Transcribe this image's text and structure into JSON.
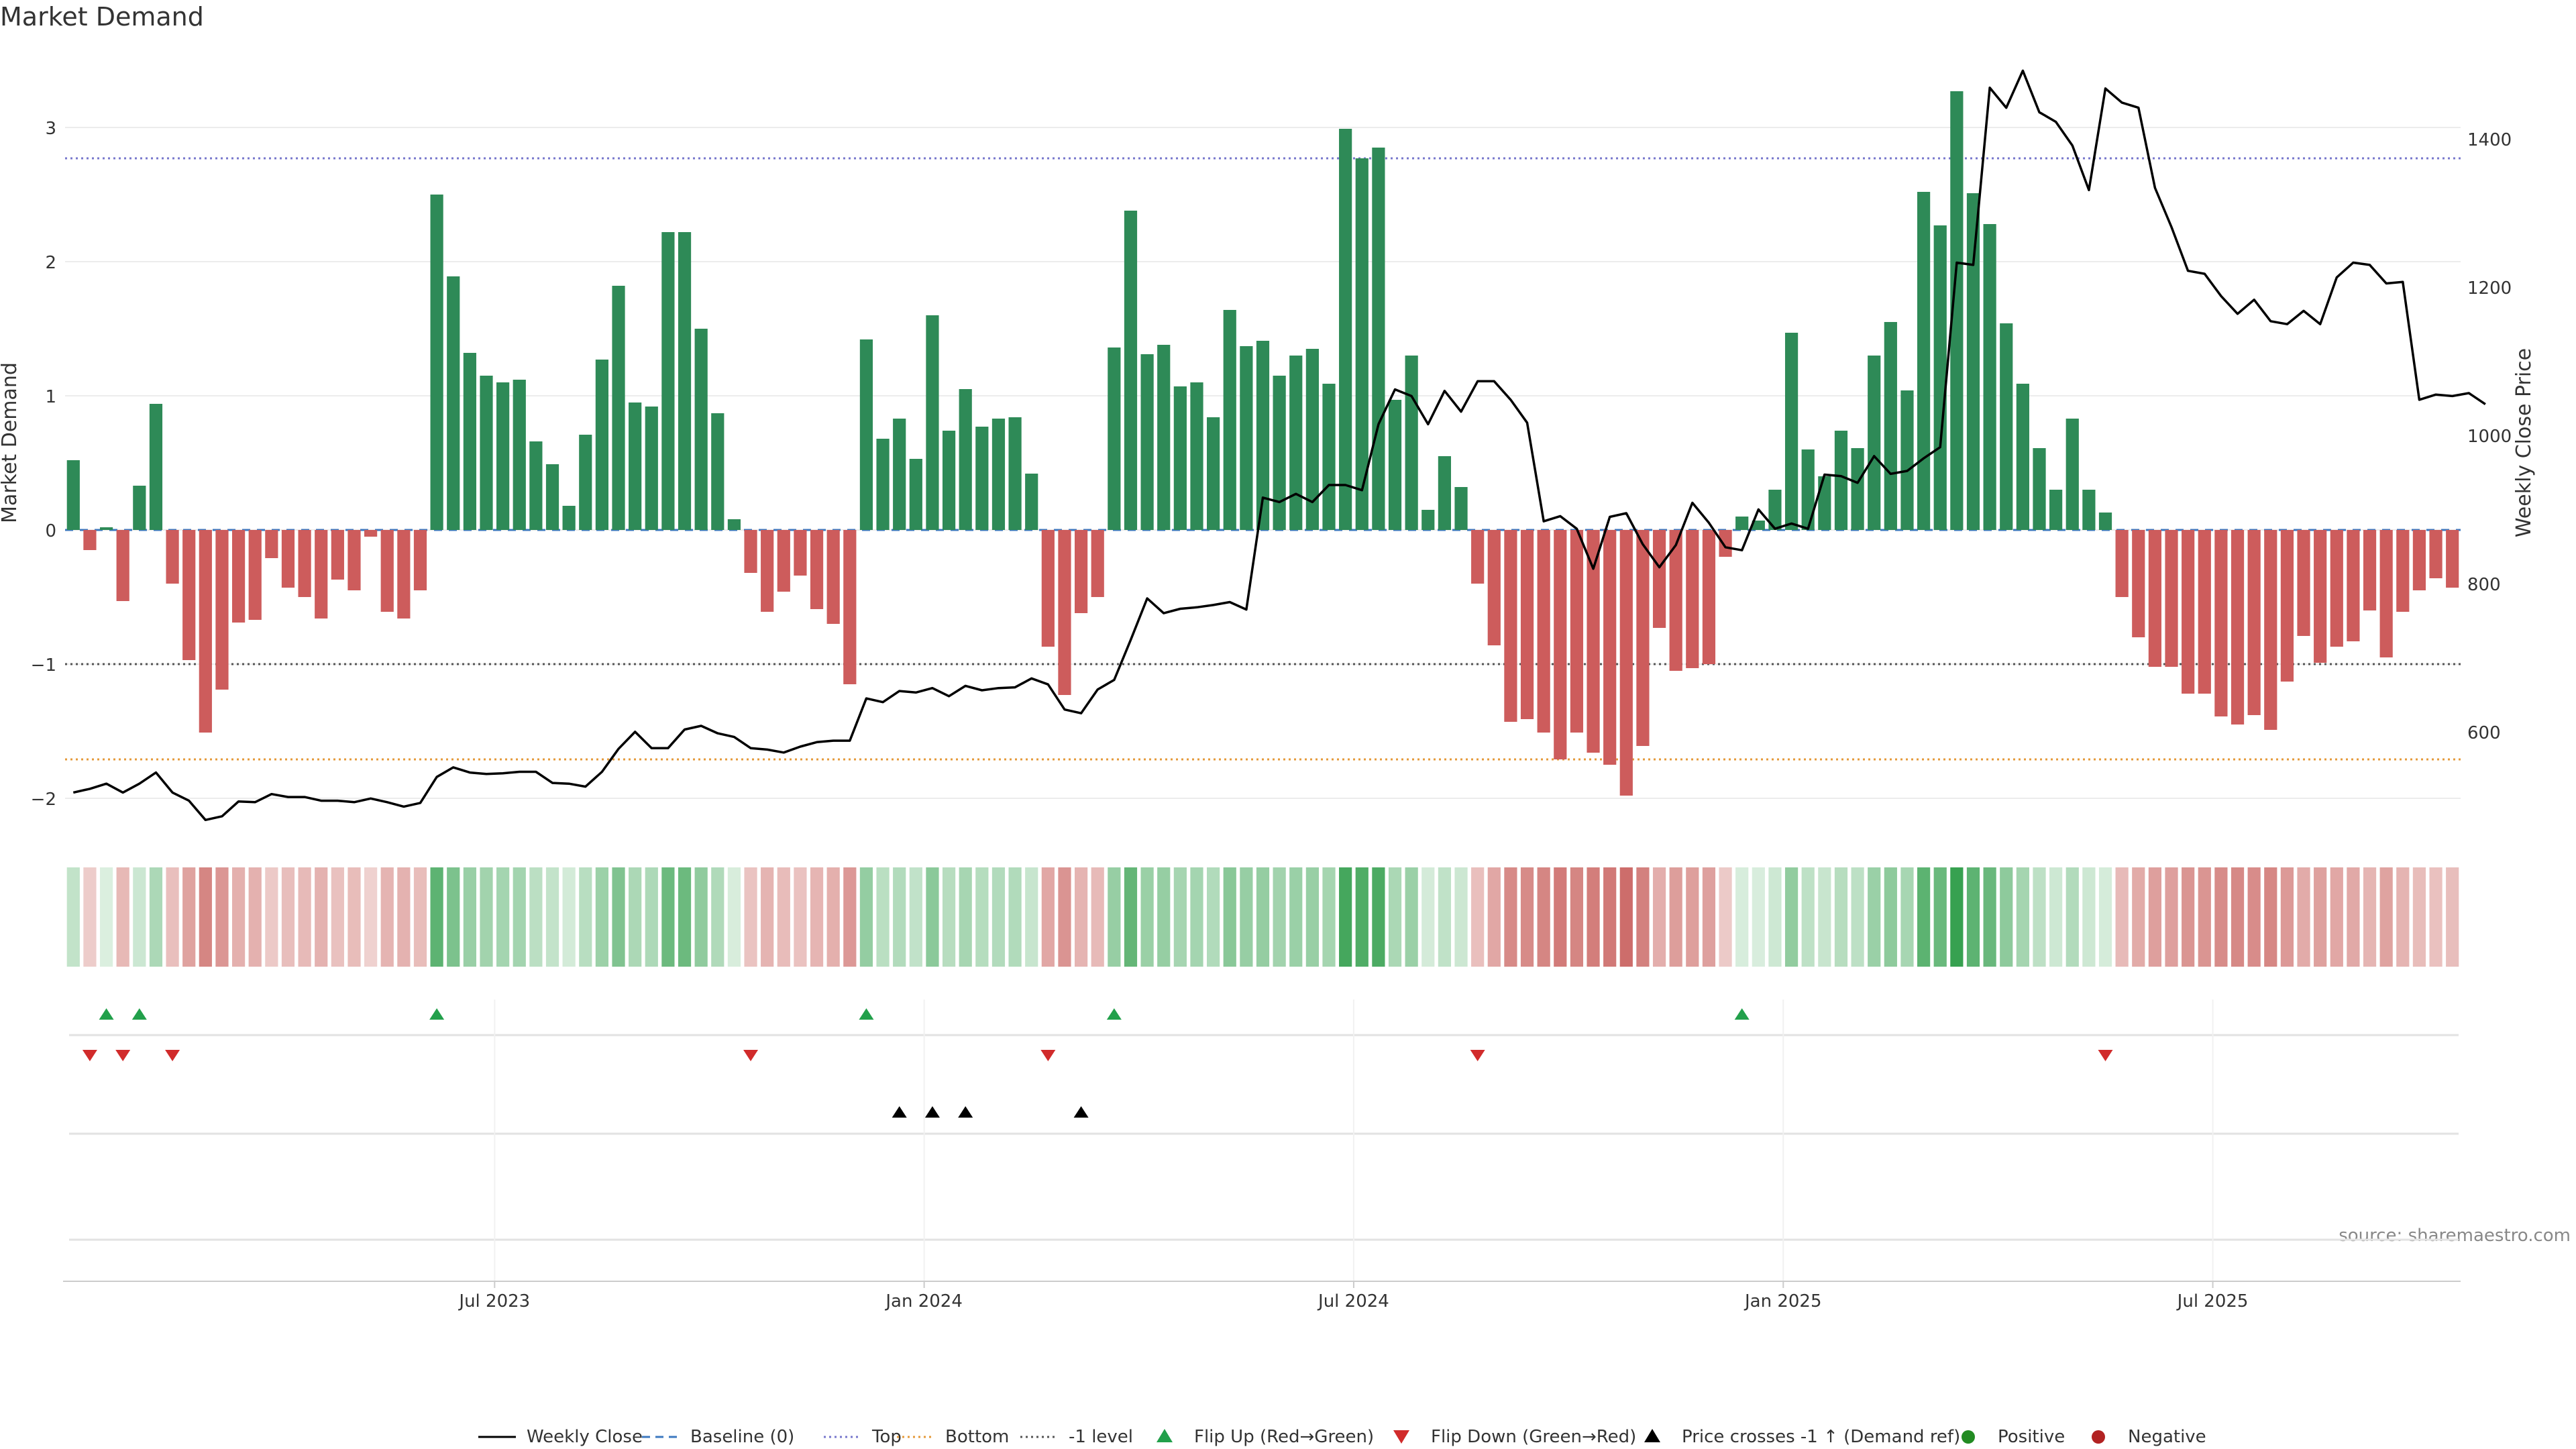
{
  "chart_data": {
    "type": "bar",
    "title": "Market Demand",
    "ylabel_left": "Market Demand",
    "ylabel_right": "Weekly Close Price",
    "ylim_left": [
      -2.25,
      3.55
    ],
    "ylim_right": [
      465,
      1515
    ],
    "yticks_left": [
      3,
      2,
      1,
      0,
      -1,
      -2
    ],
    "yticks_right": [
      1400,
      1200,
      1000,
      800,
      600
    ],
    "ytick_labels_left": [
      "3",
      "2",
      "1",
      "0",
      "−1",
      "−2"
    ],
    "ytick_labels_right": [
      "1400",
      "1200",
      "1000",
      "800",
      "600"
    ],
    "x_start": "2023-01-02",
    "x_step_weeks": 1,
    "x_tick_labels": [
      "Jul 2023",
      "Jan 2024",
      "Jul 2024",
      "Jan 2025",
      "Jul 2025"
    ],
    "x_tick_weeks": [
      26,
      52,
      78,
      104,
      130
    ],
    "reference_lines": [
      {
        "name": "Top",
        "value": 2.77,
        "color": "#7777cc",
        "dash": "dotted"
      },
      {
        "name": "Bottom",
        "value": -1.71,
        "color": "#e59a3a",
        "dash": "dotted"
      },
      {
        "name": "-1 level",
        "value": -1.0,
        "color": "#555555",
        "dash": "dotted"
      },
      {
        "name": "Baseline (0)",
        "value": 0,
        "color": "#3c78c0",
        "dash": "dashed"
      }
    ],
    "series": [
      {
        "name": "Market Demand",
        "type": "bar",
        "positive_color": "#2e8a57",
        "negative_color": "#cd5c5c",
        "values": [
          0.52,
          -0.15,
          0.02,
          -0.53,
          0.33,
          0.94,
          -0.4,
          -0.97,
          -1.51,
          -1.19,
          -0.69,
          -0.67,
          -0.21,
          -0.43,
          -0.5,
          -0.66,
          -0.37,
          -0.45,
          -0.05,
          -0.61,
          -0.66,
          -0.45,
          2.5,
          1.89,
          1.32,
          1.15,
          1.1,
          1.12,
          0.66,
          0.49,
          0.18,
          0.71,
          1.27,
          1.82,
          0.95,
          0.92,
          2.22,
          2.22,
          1.5,
          0.87,
          0.08,
          -0.32,
          -0.61,
          -0.46,
          -0.34,
          -0.59,
          -0.7,
          -1.15,
          1.42,
          0.68,
          0.83,
          0.53,
          1.6,
          0.74,
          1.05,
          0.77,
          0.83,
          0.84,
          0.42,
          -0.87,
          -1.23,
          -0.62,
          -0.5,
          1.36,
          2.38,
          1.31,
          1.38,
          1.07,
          1.1,
          0.84,
          1.64,
          1.37,
          1.41,
          1.15,
          1.3,
          1.35,
          1.09,
          2.99,
          2.77,
          2.85,
          0.97,
          1.3,
          0.15,
          0.55,
          0.32,
          -0.4,
          -0.86,
          -1.43,
          -1.41,
          -1.51,
          -1.71,
          -1.51,
          -1.66,
          -1.75,
          -1.98,
          -1.61,
          -0.73,
          -1.05,
          -1.03,
          -1.0,
          -0.2,
          0.1,
          0.07,
          0.3,
          1.47,
          0.6,
          0.4,
          0.74,
          0.61,
          1.3,
          1.55,
          1.04,
          2.52,
          2.27,
          3.27,
          2.51,
          2.28,
          1.54,
          1.09,
          0.61,
          0.3,
          0.83,
          0.3,
          0.13,
          -0.5,
          -0.8,
          -1.02,
          -1.02,
          -1.22,
          -1.22,
          -1.39,
          -1.45,
          -1.38,
          -1.49,
          -1.13,
          -0.79,
          -0.99,
          -0.87,
          -0.83,
          -0.6,
          -0.95,
          -0.61,
          -0.45,
          -0.36,
          -0.43
        ]
      },
      {
        "name": "Weekly Close",
        "type": "line",
        "axis": "right",
        "color": "#000000",
        "values": [
          518,
          523,
          530,
          518,
          530,
          545,
          518,
          507,
          481,
          486,
          506,
          505,
          516,
          512,
          512,
          507,
          507,
          505,
          510,
          505,
          499,
          504,
          539,
          552,
          545,
          543,
          544,
          546,
          546,
          531,
          530,
          526,
          546,
          577,
          600,
          578,
          578,
          603,
          608,
          598,
          593,
          578,
          576,
          572,
          580,
          586,
          588,
          588,
          645,
          640,
          655,
          653,
          659,
          648,
          662,
          656,
          659,
          660,
          672,
          664,
          630,
          625,
          657,
          670,
          724,
          780,
          760,
          766,
          768,
          771,
          775,
          765,
          916,
          910,
          921,
          910,
          933,
          933,
          926,
          1015,
          1062,
          1053,
          1015,
          1060,
          1032,
          1073,
          1073,
          1048,
          1017,
          884,
          891,
          874,
          820,
          890,
          895,
          853,
          822,
          852,
          909,
          882,
          849,
          845,
          900,
          874,
          881,
          874,
          947,
          945,
          936,
          972,
          948,
          952,
          969,
          984,
          1233,
          1230,
          1469,
          1442,
          1492,
          1436,
          1423,
          1391,
          1331,
          1468,
          1449,
          1442,
          1334,
          1281,
          1222,
          1218,
          1188,
          1164,
          1183,
          1154,
          1150,
          1168,
          1150,
          1213,
          1233,
          1230,
          1205,
          1207,
          1048,
          1055,
          1053,
          1057,
          1042
        ]
      },
      {
        "name": "Flip Up (Red→Green)",
        "type": "marker",
        "marker": "triangle-up",
        "color": "#22a04b",
        "row": 0,
        "weeks": [
          2,
          4,
          22,
          48,
          63,
          101
        ]
      },
      {
        "name": "Flip Down (Green→Red)",
        "type": "marker",
        "marker": "triangle-down",
        "color": "#d12b2b",
        "row": 1,
        "weeks": [
          1,
          3,
          6,
          41,
          59,
          85,
          123
        ]
      },
      {
        "name": "Price crosses -1 ↑ (Demand ref)",
        "type": "marker",
        "marker": "triangle-up",
        "color": "#000000",
        "row": 2,
        "weeks": [
          50,
          52,
          54,
          61
        ]
      },
      {
        "name": "Positive",
        "type": "marker",
        "marker": "circle",
        "color": "#228b22",
        "row": 3,
        "weeks": []
      },
      {
        "name": "Negative",
        "type": "marker",
        "marker": "circle",
        "color": "#b22222",
        "row": 3,
        "weeks": []
      }
    ],
    "legend": [
      {
        "label": "Weekly Close",
        "symbol": "line",
        "color": "#000000"
      },
      {
        "label": "Baseline (0)",
        "symbol": "dashed",
        "color": "#3c78c0"
      },
      {
        "label": "Top",
        "symbol": "dotted",
        "color": "#7777cc"
      },
      {
        "label": "Bottom",
        "symbol": "dotted",
        "color": "#e59a3a"
      },
      {
        "label": "-1 level",
        "symbol": "dotted",
        "color": "#555555"
      },
      {
        "label": "Flip Up (Red→Green)",
        "symbol": "triangle-up",
        "color": "#22a04b"
      },
      {
        "label": "Flip Down (Green→Red)",
        "symbol": "triangle-down",
        "color": "#d12b2b"
      },
      {
        "label": "Price crosses -1 ↑ (Demand ref)",
        "symbol": "triangle-up",
        "color": "#000000"
      },
      {
        "label": "Positive",
        "symbol": "circle",
        "color": "#228b22"
      },
      {
        "label": "Negative",
        "symbol": "circle",
        "color": "#b22222"
      }
    ],
    "legend_position": "bottom",
    "annotation": "source: sharemaestro.com",
    "heat_strip": "colour intensity per week follows Market Demand value (green positive, red negative)"
  }
}
